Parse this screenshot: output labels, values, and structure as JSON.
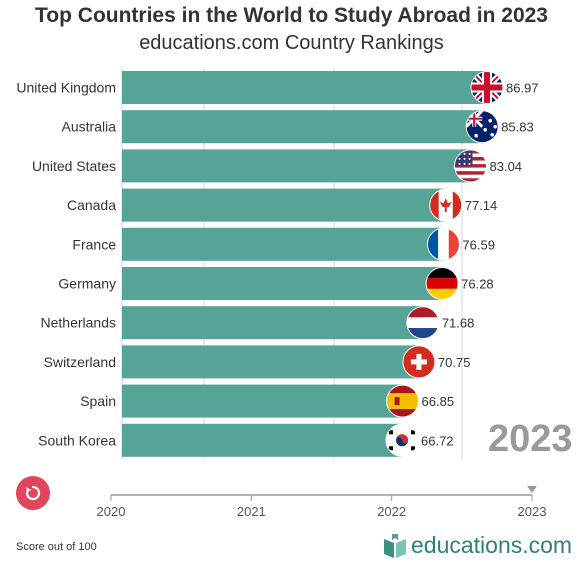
{
  "chart_data": {
    "type": "bar",
    "orientation": "horizontal",
    "title": "Top Countries in the World to Study Abroad in 2023",
    "subtitle": "educations.com Country Rankings",
    "categories": [
      "United Kingdom",
      "Australia",
      "United States",
      "Canada",
      "France",
      "Germany",
      "Netherlands",
      "Switzerland",
      "Spain",
      "South Korea"
    ],
    "values": [
      86.97,
      85.83,
      83.04,
      77.14,
      76.59,
      76.28,
      71.68,
      70.75,
      66.85,
      66.72
    ],
    "flags": [
      "uk-flag-icon",
      "australia-flag-icon",
      "us-flag-icon",
      "canada-flag-icon",
      "france-flag-icon",
      "germany-flag-icon",
      "netherlands-flag-icon",
      "switzerland-flag-icon",
      "spain-flag-icon",
      "south-korea-flag-icon"
    ],
    "bar_color": "#56a397",
    "current_year": "2023",
    "timeline": {
      "ticks": [
        "2020",
        "2021",
        "2022",
        "2023"
      ],
      "current": "2023"
    },
    "xlim": [
      0,
      100
    ],
    "grid": true
  },
  "footnote": "Score out of 100",
  "brand": "educations.com",
  "replay_button": "replay-icon"
}
